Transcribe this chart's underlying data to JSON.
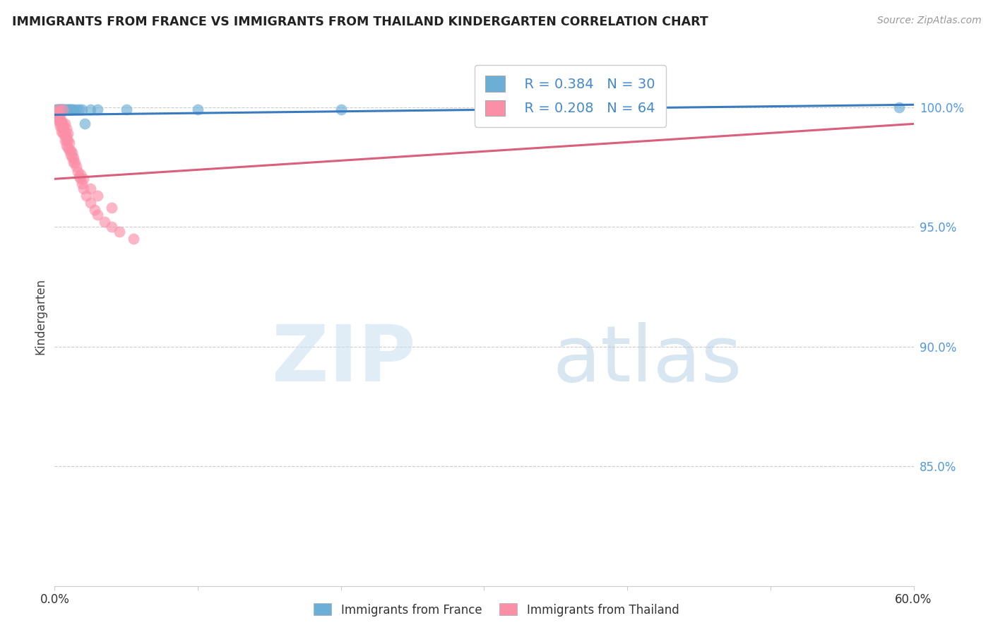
{
  "title": "IMMIGRANTS FROM FRANCE VS IMMIGRANTS FROM THAILAND KINDERGARTEN CORRELATION CHART",
  "source": "Source: ZipAtlas.com",
  "ylabel": "Kindergarten",
  "ytick_labels": [
    "100.0%",
    "95.0%",
    "90.0%",
    "85.0%"
  ],
  "ytick_values": [
    1.0,
    0.95,
    0.9,
    0.85
  ],
  "xlim": [
    0.0,
    0.6
  ],
  "ylim": [
    0.8,
    1.025
  ],
  "legend_r_france": "R = 0.384",
  "legend_n_france": "N = 30",
  "legend_r_thailand": "R = 0.208",
  "legend_n_thailand": "N = 64",
  "france_color": "#6baed6",
  "thailand_color": "#fc8fa8",
  "france_line_color": "#3a7abf",
  "thailand_line_color": "#d95f7a",
  "france_x": [
    0.001,
    0.002,
    0.003,
    0.003,
    0.004,
    0.004,
    0.005,
    0.005,
    0.006,
    0.006,
    0.007,
    0.007,
    0.008,
    0.009,
    0.01,
    0.01,
    0.011,
    0.012,
    0.013,
    0.015,
    0.017,
    0.019,
    0.021,
    0.025,
    0.03,
    0.05,
    0.1,
    0.2,
    0.38,
    0.59
  ],
  "france_y": [
    0.999,
    0.999,
    0.999,
    0.999,
    0.999,
    0.999,
    0.999,
    0.999,
    0.999,
    0.999,
    0.999,
    0.999,
    0.999,
    0.999,
    0.999,
    0.999,
    0.999,
    0.999,
    0.999,
    0.999,
    0.999,
    0.999,
    0.993,
    0.999,
    0.999,
    0.999,
    0.999,
    0.999,
    1.0,
    1.0
  ],
  "thailand_x": [
    0.001,
    0.001,
    0.002,
    0.002,
    0.002,
    0.003,
    0.003,
    0.003,
    0.003,
    0.004,
    0.004,
    0.004,
    0.005,
    0.005,
    0.005,
    0.006,
    0.006,
    0.006,
    0.006,
    0.007,
    0.007,
    0.007,
    0.008,
    0.008,
    0.008,
    0.009,
    0.009,
    0.01,
    0.01,
    0.011,
    0.011,
    0.012,
    0.012,
    0.013,
    0.013,
    0.014,
    0.015,
    0.016,
    0.017,
    0.018,
    0.019,
    0.02,
    0.022,
    0.025,
    0.028,
    0.03,
    0.035,
    0.04,
    0.045,
    0.055,
    0.004,
    0.005,
    0.006,
    0.007,
    0.008,
    0.009,
    0.02,
    0.025,
    0.03,
    0.04,
    0.003,
    0.004,
    0.006,
    0.018
  ],
  "thailand_y": [
    0.998,
    0.997,
    0.997,
    0.996,
    0.998,
    0.997,
    0.996,
    0.994,
    0.999,
    0.996,
    0.994,
    0.992,
    0.994,
    0.992,
    0.99,
    0.993,
    0.991,
    0.989,
    0.999,
    0.99,
    0.988,
    0.986,
    0.988,
    0.986,
    0.984,
    0.986,
    0.983,
    0.985,
    0.982,
    0.982,
    0.98,
    0.981,
    0.979,
    0.979,
    0.977,
    0.977,
    0.975,
    0.973,
    0.971,
    0.97,
    0.968,
    0.966,
    0.963,
    0.96,
    0.957,
    0.955,
    0.952,
    0.95,
    0.948,
    0.945,
    0.995,
    0.993,
    0.991,
    0.993,
    0.991,
    0.989,
    0.97,
    0.966,
    0.963,
    0.958,
    0.995,
    0.994,
    0.992,
    0.972
  ],
  "france_trend_x": [
    0.0,
    0.6
  ],
  "france_trend_y": [
    0.9968,
    1.001
  ],
  "thailand_trend_x": [
    0.0,
    0.6
  ],
  "thailand_trend_y": [
    0.97,
    0.993
  ]
}
